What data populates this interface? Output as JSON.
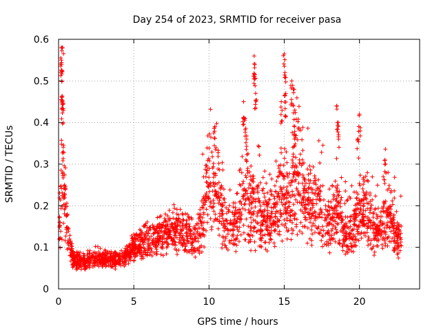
{
  "chart_data": {
    "type": "scatter",
    "title": "Day 254 of 2023, SRMTID for receiver pasa",
    "xlabel": "GPS time / hours",
    "ylabel": "SRMTID / TECUs",
    "xlim": [
      0,
      24
    ],
    "ylim": [
      0,
      0.6
    ],
    "xticks": [
      0,
      5,
      10,
      15,
      20
    ],
    "yticks": [
      0,
      0.1,
      0.2,
      0.3,
      0.4,
      0.5,
      0.6
    ],
    "grid": true,
    "marker": "+",
    "color": "#ff0000",
    "trend": [
      [
        0.0,
        0.12
      ],
      [
        0.15,
        0.2
      ],
      [
        0.25,
        0.5
      ],
      [
        0.35,
        0.3
      ],
      [
        0.5,
        0.18
      ],
      [
        0.7,
        0.11
      ],
      [
        1.0,
        0.07
      ],
      [
        1.5,
        0.065
      ],
      [
        2.0,
        0.07
      ],
      [
        2.5,
        0.08
      ],
      [
        3.0,
        0.07
      ],
      [
        3.5,
        0.07
      ],
      [
        4.0,
        0.065
      ],
      [
        4.5,
        0.08
      ],
      [
        5.0,
        0.1
      ],
      [
        5.5,
        0.11
      ],
      [
        6.0,
        0.12
      ],
      [
        6.5,
        0.12
      ],
      [
        7.0,
        0.13
      ],
      [
        7.5,
        0.14
      ],
      [
        8.0,
        0.14
      ],
      [
        8.5,
        0.14
      ],
      [
        9.0,
        0.12
      ],
      [
        9.5,
        0.15
      ],
      [
        9.8,
        0.24
      ],
      [
        10.3,
        0.26
      ],
      [
        10.8,
        0.2
      ],
      [
        11.0,
        0.14
      ],
      [
        11.5,
        0.15
      ],
      [
        12.0,
        0.17
      ],
      [
        12.5,
        0.22
      ],
      [
        13.0,
        0.2
      ],
      [
        13.5,
        0.18
      ],
      [
        14.0,
        0.17
      ],
      [
        14.5,
        0.19
      ],
      [
        15.0,
        0.24
      ],
      [
        15.3,
        0.18
      ],
      [
        15.7,
        0.25
      ],
      [
        16.0,
        0.3
      ],
      [
        16.5,
        0.2
      ],
      [
        17.0,
        0.2
      ],
      [
        17.5,
        0.18
      ],
      [
        18.0,
        0.16
      ],
      [
        18.5,
        0.19
      ],
      [
        19.0,
        0.12
      ],
      [
        19.5,
        0.14
      ],
      [
        20.0,
        0.18
      ],
      [
        20.5,
        0.19
      ],
      [
        21.0,
        0.14
      ],
      [
        21.5,
        0.15
      ],
      [
        22.0,
        0.18
      ],
      [
        22.5,
        0.12
      ],
      [
        22.8,
        0.12
      ]
    ],
    "peaks": [
      [
        0.18,
        0.58
      ],
      [
        0.2,
        0.54
      ],
      [
        0.22,
        0.5
      ],
      [
        0.25,
        0.45
      ],
      [
        0.3,
        0.33
      ],
      [
        0.4,
        0.25
      ],
      [
        10.4,
        0.39
      ],
      [
        12.3,
        0.45
      ],
      [
        12.4,
        0.41
      ],
      [
        12.5,
        0.36
      ],
      [
        13.0,
        0.56
      ],
      [
        13.05,
        0.54
      ],
      [
        13.1,
        0.47
      ],
      [
        14.8,
        0.45
      ],
      [
        15.0,
        0.565
      ],
      [
        15.05,
        0.52
      ],
      [
        15.1,
        0.47
      ],
      [
        15.5,
        0.5
      ],
      [
        15.6,
        0.48
      ],
      [
        15.7,
        0.43
      ],
      [
        18.5,
        0.44
      ],
      [
        18.6,
        0.4
      ],
      [
        20.0,
        0.42
      ],
      [
        19.9,
        0.36
      ],
      [
        21.7,
        0.31
      ]
    ],
    "point_count": 2600
  }
}
